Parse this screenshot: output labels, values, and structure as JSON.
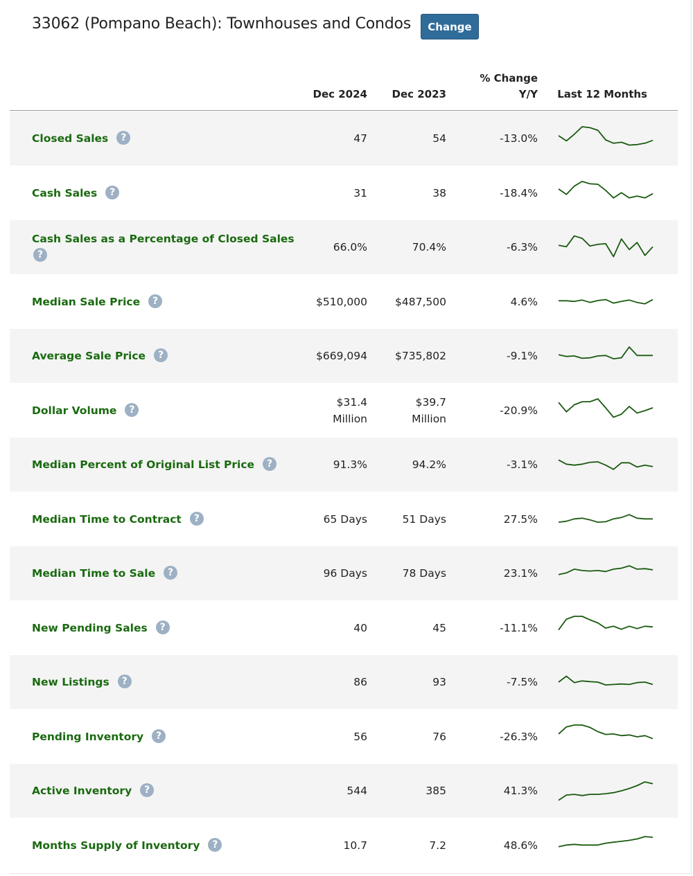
{
  "page": {
    "title": "33062 (Pompano Beach): Townhouses and Condos",
    "change_label": "Change"
  },
  "header": {
    "col1": "Dec 2024",
    "col2": "Dec 2023",
    "col3_line1": "% Change",
    "col3_line2": "Y/Y",
    "col4": "Last 12 Months",
    "help_glyph": "?"
  },
  "colors": {
    "label_green": "#1a6a10",
    "sparkline": "#1a5a10",
    "button_blue": "#2f6c9a",
    "help_icon": "#9db0c4",
    "row_shade": "#f4f4f4"
  },
  "rows": [
    {
      "label": "Closed Sales",
      "dec2024": "47",
      "dec2023": "54",
      "pct_change": "-13.0%",
      "trend": [
        0.62,
        0.4,
        0.68,
        1.0,
        0.96,
        0.85,
        0.44,
        0.3,
        0.34,
        0.22,
        0.24,
        0.3,
        0.42
      ]
    },
    {
      "label": "Cash Sales",
      "dec2024": "31",
      "dec2023": "38",
      "pct_change": "-18.4%",
      "trend": [
        0.68,
        0.45,
        0.8,
        1.0,
        0.9,
        0.88,
        0.62,
        0.3,
        0.52,
        0.3,
        0.38,
        0.3,
        0.48
      ]
    },
    {
      "label": "Cash Sales as a Percentage of Closed Sales",
      "dec2024": "66.0%",
      "dec2023": "70.4%",
      "pct_change": "-6.3%",
      "trend": [
        0.58,
        0.52,
        0.98,
        0.88,
        0.55,
        0.62,
        0.65,
        0.1,
        0.85,
        0.4,
        0.7,
        0.15,
        0.52
      ]
    },
    {
      "label": "Median Sale Price",
      "dec2024": "$510,000",
      "dec2023": "$487,500",
      "pct_change": "4.6%",
      "trend": [
        0.55,
        0.55,
        0.52,
        0.58,
        0.48,
        0.56,
        0.6,
        0.45,
        0.52,
        0.58,
        0.48,
        0.42,
        0.6
      ]
    },
    {
      "label": "Average Sale Price",
      "dec2024": "$669,094",
      "dec2023": "$735,802",
      "pct_change": "-9.1%",
      "trend": [
        0.55,
        0.48,
        0.5,
        0.4,
        0.42,
        0.5,
        0.52,
        0.38,
        0.42,
        0.88,
        0.52,
        0.52,
        0.52
      ]
    },
    {
      "label": "Dollar Volume",
      "dec2024": "$31.4\nMillion",
      "dec2023": "$39.7\nMillion",
      "pct_change": "-20.9%",
      "trend": [
        0.85,
        0.45,
        0.75,
        0.88,
        0.88,
        1.0,
        0.62,
        0.22,
        0.35,
        0.68,
        0.4,
        0.5,
        0.62
      ]
    },
    {
      "label": "Median Percent of Original List Price",
      "dec2024": "91.3%",
      "dec2023": "94.2%",
      "pct_change": "-3.1%",
      "trend": [
        0.7,
        0.52,
        0.48,
        0.52,
        0.6,
        0.62,
        0.48,
        0.3,
        0.58,
        0.58,
        0.4,
        0.48,
        0.42
      ]
    },
    {
      "label": "Median Time to Contract",
      "dec2024": "65 Days",
      "dec2023": "51 Days",
      "pct_change": "27.5%",
      "trend": [
        0.38,
        0.42,
        0.52,
        0.55,
        0.48,
        0.38,
        0.4,
        0.52,
        0.58,
        0.7,
        0.55,
        0.52,
        0.52
      ]
    },
    {
      "label": "Median Time to Sale",
      "dec2024": "96 Days",
      "dec2023": "78 Days",
      "pct_change": "23.1%",
      "trend": [
        0.45,
        0.52,
        0.68,
        0.62,
        0.6,
        0.62,
        0.58,
        0.68,
        0.72,
        0.82,
        0.68,
        0.7,
        0.65
      ]
    },
    {
      "label": "New Pending Sales",
      "dec2024": "40",
      "dec2023": "45",
      "pct_change": "-11.1%",
      "trend": [
        0.42,
        0.88,
        1.0,
        1.0,
        0.85,
        0.72,
        0.5,
        0.58,
        0.45,
        0.58,
        0.48,
        0.58,
        0.55
      ]
    },
    {
      "label": "New Listings",
      "dec2024": "86",
      "dec2023": "93",
      "pct_change": "-7.5%",
      "trend": [
        0.5,
        0.75,
        0.48,
        0.55,
        0.52,
        0.5,
        0.38,
        0.4,
        0.42,
        0.4,
        0.48,
        0.5,
        0.4
      ]
    },
    {
      "label": "Pending Inventory",
      "dec2024": "56",
      "dec2023": "76",
      "pct_change": "-26.3%",
      "trend": [
        0.62,
        0.92,
        1.0,
        1.0,
        0.9,
        0.72,
        0.6,
        0.62,
        0.55,
        0.58,
        0.5,
        0.55,
        0.42
      ]
    },
    {
      "label": "Active Inventory",
      "dec2024": "544",
      "dec2023": "385",
      "pct_change": "41.3%",
      "trend": [
        0.1,
        0.32,
        0.35,
        0.3,
        0.35,
        0.35,
        0.38,
        0.42,
        0.5,
        0.6,
        0.72,
        0.88,
        0.8
      ]
    },
    {
      "label": "Months Supply of Inventory",
      "dec2024": "10.7",
      "dec2023": "7.2",
      "pct_change": "48.6%",
      "trend": [
        0.45,
        0.52,
        0.55,
        0.52,
        0.52,
        0.52,
        0.6,
        0.64,
        0.68,
        0.72,
        0.78,
        0.88,
        0.85
      ]
    }
  ]
}
